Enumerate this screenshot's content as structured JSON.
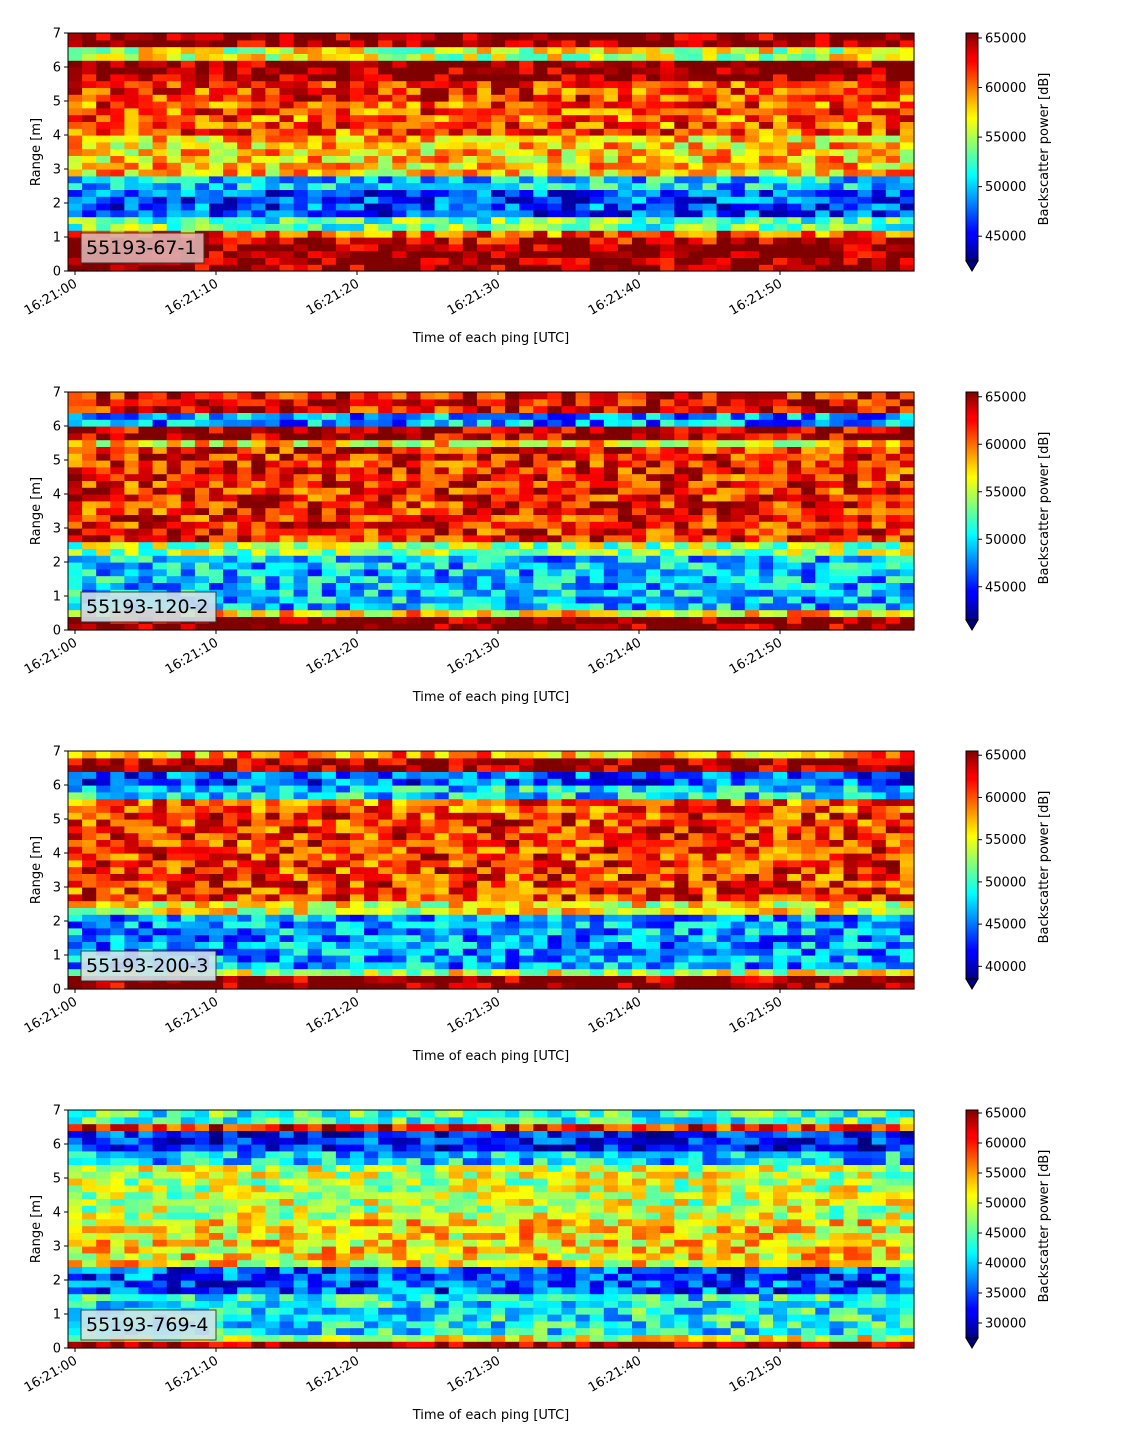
{
  "chart_data": [
    {
      "type": "heatmap",
      "label_box": "55193-67-1",
      "label_box_color": "#dbb0b0",
      "xlabel": "Time of each ping [UTC]",
      "ylabel": "Range [m]",
      "colorbar_label": "Backscatter power [dB]",
      "x_ticks": [
        "16:21:00",
        "16:21:10",
        "16:21:20",
        "16:21:30",
        "16:21:40",
        "16:21:50"
      ],
      "x_range_seconds": [
        0,
        59.5
      ],
      "y_ticks": [
        0,
        1,
        2,
        3,
        4,
        5,
        6,
        7
      ],
      "ylim": [
        0,
        7
      ],
      "colorbar_ticks": [
        45000,
        50000,
        55000,
        60000,
        65000
      ],
      "clim": [
        42500,
        65500
      ],
      "colorbar_extend": "min",
      "bands": [
        {
          "range": [
            0.0,
            0.2
          ],
          "value": 65500
        },
        {
          "range": [
            0.2,
            0.8
          ],
          "value": 65500
        },
        {
          "range": [
            0.8,
            1.0
          ],
          "value": 64000
        },
        {
          "range": [
            1.0,
            1.2
          ],
          "value": 61000
        },
        {
          "range": [
            1.2,
            1.6
          ],
          "value": 53000
        },
        {
          "range": [
            1.6,
            2.4
          ],
          "value": 47000
        },
        {
          "range": [
            2.4,
            2.8
          ],
          "value": 50000
        },
        {
          "range": [
            2.8,
            4.0
          ],
          "value": 58000
        },
        {
          "range": [
            4.0,
            5.0
          ],
          "value": 61000
        },
        {
          "range": [
            5.0,
            5.6
          ],
          "value": 61500
        },
        {
          "range": [
            5.6,
            6.2
          ],
          "value": 65500
        },
        {
          "range": [
            6.2,
            6.6
          ],
          "value": 56000
        },
        {
          "range": [
            6.6,
            7.0
          ],
          "value": 65500
        }
      ]
    },
    {
      "type": "heatmap",
      "label_box": "55193-120-2",
      "label_box_color": "#cfe4ea",
      "xlabel": "Time of each ping [UTC]",
      "ylabel": "Range [m]",
      "colorbar_label": "Backscatter power [dB]",
      "x_ticks": [
        "16:21:00",
        "16:21:10",
        "16:21:20",
        "16:21:30",
        "16:21:40",
        "16:21:50"
      ],
      "x_range_seconds": [
        0,
        59.5
      ],
      "y_ticks": [
        0,
        1,
        2,
        3,
        4,
        5,
        6,
        7
      ],
      "ylim": [
        0,
        7
      ],
      "colorbar_ticks": [
        45000,
        50000,
        55000,
        60000,
        65000
      ],
      "clim": [
        41500,
        65500
      ],
      "colorbar_extend": "min",
      "bands": [
        {
          "range": [
            0.0,
            0.4
          ],
          "value": 65500
        },
        {
          "range": [
            0.4,
            0.7
          ],
          "value": 58000
        },
        {
          "range": [
            0.7,
            2.3
          ],
          "value": 49000
        },
        {
          "range": [
            2.3,
            2.6
          ],
          "value": 54000
        },
        {
          "range": [
            2.6,
            5.4
          ],
          "value": 62000
        },
        {
          "range": [
            5.4,
            5.7
          ],
          "value": 57000
        },
        {
          "range": [
            5.7,
            6.0
          ],
          "value": 64000
        },
        {
          "range": [
            6.0,
            6.5
          ],
          "value": 48000
        },
        {
          "range": [
            6.5,
            7.0
          ],
          "value": 63000
        }
      ]
    },
    {
      "type": "heatmap",
      "label_box": "55193-200-3",
      "label_box_color": "#cfe4ea",
      "xlabel": "Time of each ping [UTC]",
      "ylabel": "Range [m]",
      "colorbar_label": "Backscatter power [dB]",
      "x_ticks": [
        "16:21:00",
        "16:21:10",
        "16:21:20",
        "16:21:30",
        "16:21:40",
        "16:21:50"
      ],
      "x_range_seconds": [
        0,
        59.5
      ],
      "y_ticks": [
        0,
        1,
        2,
        3,
        4,
        5,
        6,
        7
      ],
      "ylim": [
        0,
        7
      ],
      "colorbar_ticks": [
        40000,
        45000,
        50000,
        55000,
        60000,
        65000
      ],
      "clim": [
        38500,
        65500
      ],
      "colorbar_extend": "min",
      "bands": [
        {
          "range": [
            0.0,
            0.4
          ],
          "value": 65500
        },
        {
          "range": [
            0.4,
            0.6
          ],
          "value": 54000
        },
        {
          "range": [
            0.6,
            2.3
          ],
          "value": 46000
        },
        {
          "range": [
            2.3,
            2.6
          ],
          "value": 55000
        },
        {
          "range": [
            2.6,
            5.3
          ],
          "value": 61000
        },
        {
          "range": [
            5.3,
            5.7
          ],
          "value": 60000
        },
        {
          "range": [
            5.7,
            6.0
          ],
          "value": 48000
        },
        {
          "range": [
            6.0,
            6.5
          ],
          "value": 44000
        },
        {
          "range": [
            6.5,
            6.8
          ],
          "value": 65000
        },
        {
          "range": [
            6.8,
            7.0
          ],
          "value": 58000
        }
      ]
    },
    {
      "type": "heatmap",
      "label_box": "55193-769-4",
      "label_box_color": "#cfe4ea",
      "xlabel": "Time of each ping [UTC]",
      "ylabel": "Range [m]",
      "colorbar_label": "Backscatter power [dB]",
      "x_ticks": [
        "16:21:00",
        "16:21:10",
        "16:21:20",
        "16:21:30",
        "16:21:40",
        "16:21:50"
      ],
      "x_range_seconds": [
        0,
        59.5
      ],
      "y_ticks": [
        0,
        1,
        2,
        3,
        4,
        5,
        6,
        7
      ],
      "ylim": [
        0,
        7
      ],
      "colorbar_ticks": [
        30000,
        35000,
        40000,
        45000,
        50000,
        55000,
        60000,
        65000
      ],
      "clim": [
        27500,
        65500
      ],
      "colorbar_extend": "min",
      "bands": [
        {
          "range": [
            0.0,
            0.15
          ],
          "value": 65500
        },
        {
          "range": [
            0.15,
            0.35
          ],
          "value": 50000
        },
        {
          "range": [
            0.35,
            1.6
          ],
          "value": 42000
        },
        {
          "range": [
            1.6,
            2.4
          ],
          "value": 35000
        },
        {
          "range": [
            2.4,
            3.8
          ],
          "value": 52000
        },
        {
          "range": [
            3.8,
            5.5
          ],
          "value": 49000
        },
        {
          "range": [
            5.5,
            5.9
          ],
          "value": 40000
        },
        {
          "range": [
            5.9,
            6.5
          ],
          "value": 33000
        },
        {
          "range": [
            6.5,
            6.7
          ],
          "value": 60000
        },
        {
          "range": [
            6.7,
            7.0
          ],
          "value": 44000
        }
      ]
    }
  ]
}
